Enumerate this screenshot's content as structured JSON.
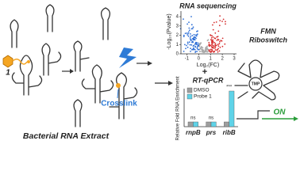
{
  "probe_label": "1",
  "crosslink_label": "Crosslink",
  "extract_label": "Bacterial RNA Extract",
  "plus": "+",
  "volcano": {
    "title": "RNA sequencing",
    "xlabel": "Log₂(FC)",
    "ylabel": "-Log₁₀(Pvalue)",
    "xlim": [
      -1.5,
      3.2
    ],
    "ylim": [
      0,
      4.6
    ],
    "xticks": [
      -1,
      0,
      1,
      2,
      3
    ],
    "yticks": [
      0,
      1,
      2,
      3,
      4
    ]
  },
  "qpcr": {
    "type": "bar",
    "title": "RT-qPCR",
    "ylabel": "Relative Fold RNA Enrichment",
    "categories": [
      "rnpB",
      "prs",
      "ribB"
    ],
    "ylim": [
      0,
      8
    ],
    "series": [
      {
        "name": "DMSO",
        "color": "#9e9e9e",
        "values": [
          1,
          1,
          1
        ]
      },
      {
        "name": "Probe 1",
        "color": "#5fd3e8",
        "values": [
          1,
          1,
          7.5
        ]
      }
    ],
    "annotations": [
      "ns",
      "ns",
      "***"
    ]
  },
  "riboswitch": {
    "title_line1": "FMN",
    "title_line2": "Riboswitch",
    "ligand": "TMP",
    "state": "ON"
  }
}
